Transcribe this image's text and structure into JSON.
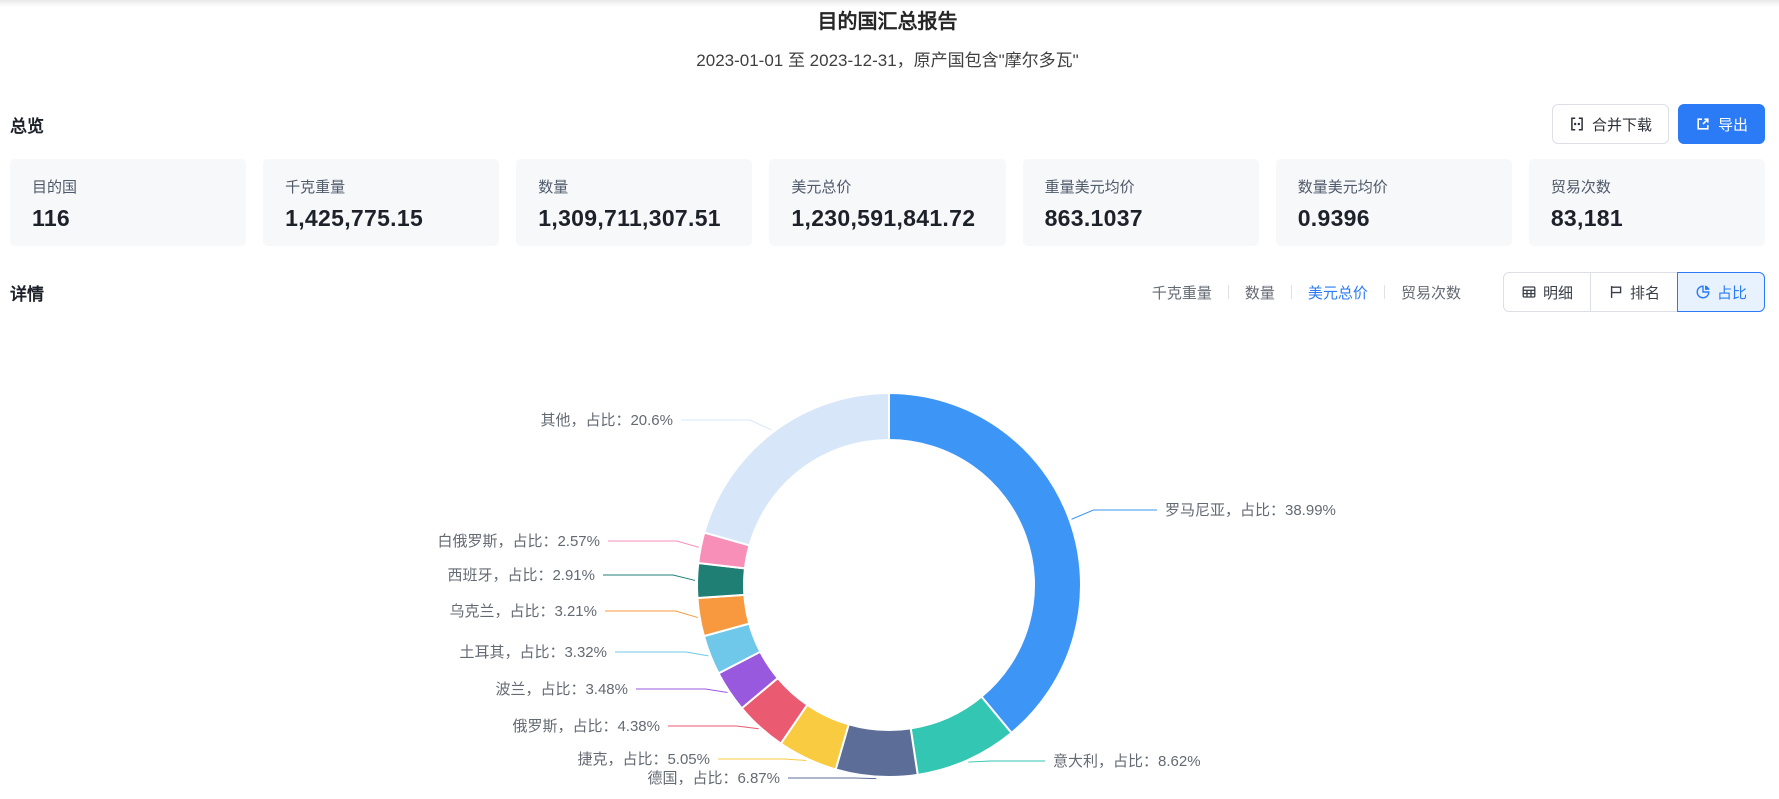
{
  "header": {
    "title": "目的国汇总报告",
    "subtitle": "2023-01-01 至 2023-12-31，原产国包含\"摩尔多瓦\""
  },
  "overview": {
    "heading": "总览",
    "merge_download_label": "合并下载",
    "export_label": "导出",
    "cards": [
      {
        "label": "目的国",
        "value": "116"
      },
      {
        "label": "千克重量",
        "value": "1,425,775.15"
      },
      {
        "label": "数量",
        "value": "1,309,711,307.51"
      },
      {
        "label": "美元总价",
        "value": "1,230,591,841.72"
      },
      {
        "label": "重量美元均价",
        "value": "863.1037"
      },
      {
        "label": "数量美元均价",
        "value": "0.9396"
      },
      {
        "label": "贸易次数",
        "value": "83,181"
      }
    ]
  },
  "details": {
    "heading": "详情",
    "metric_tabs": [
      {
        "label": "千克重量",
        "selected": false
      },
      {
        "label": "数量",
        "selected": false
      },
      {
        "label": "美元总价",
        "selected": true
      },
      {
        "label": "贸易次数",
        "selected": false
      }
    ],
    "view_buttons": [
      {
        "label": "明细",
        "icon": "table-icon",
        "selected": false
      },
      {
        "label": "排名",
        "icon": "ranking-icon",
        "selected": false
      },
      {
        "label": "占比",
        "icon": "pie-icon",
        "selected": true
      }
    ]
  },
  "chart_data": {
    "type": "pie",
    "donut": true,
    "start_angle_deg": -90,
    "clockwise": true,
    "legend_position": "none",
    "label_format": "{name}，占比：{pct}%",
    "series": [
      {
        "name": "罗马尼亚",
        "pct": 38.99,
        "color": "#3D96F6"
      },
      {
        "name": "意大利",
        "pct": 8.62,
        "color": "#33C6B3"
      },
      {
        "name": "德国",
        "pct": 6.87,
        "color": "#5C6E97"
      },
      {
        "name": "捷克",
        "pct": 5.05,
        "color": "#F8CB40"
      },
      {
        "name": "俄罗斯",
        "pct": 4.38,
        "color": "#EA5A71"
      },
      {
        "name": "波兰",
        "pct": 3.48,
        "color": "#9859DE"
      },
      {
        "name": "土耳其",
        "pct": 3.32,
        "color": "#6FC7E9"
      },
      {
        "name": "乌克兰",
        "pct": 3.21,
        "color": "#F9993F"
      },
      {
        "name": "西班牙",
        "pct": 2.91,
        "color": "#1F7F75"
      },
      {
        "name": "白俄罗斯",
        "pct": 2.57,
        "color": "#F78FB9"
      },
      {
        "name": "其他",
        "pct": 20.6,
        "color": "#D7E7F9"
      }
    ]
  },
  "colors": {
    "primary": "#2B7BF6",
    "selected_bg": "#E8F2FF",
    "card_bg": "#F7F8FA",
    "label_text": "#646A73"
  }
}
